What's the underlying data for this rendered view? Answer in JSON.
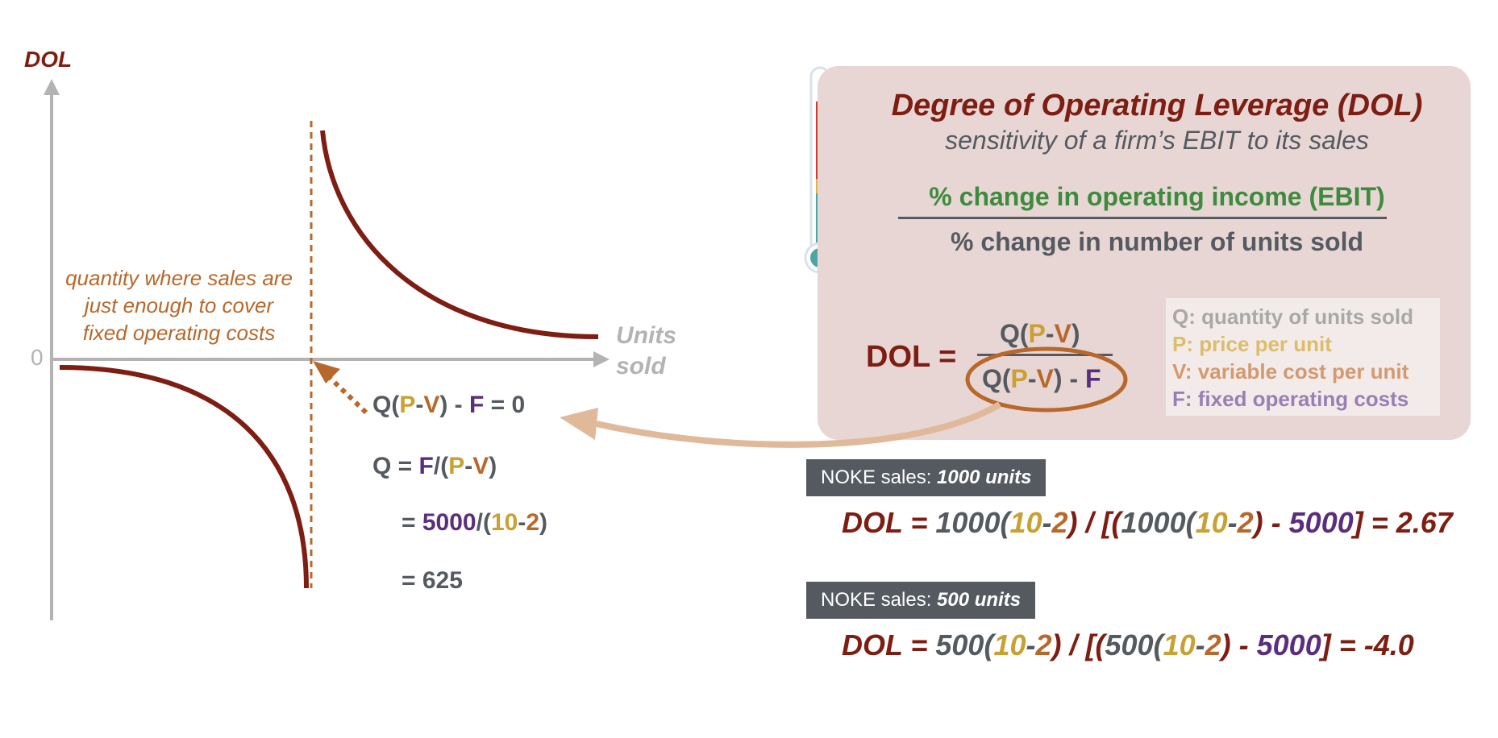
{
  "graph": {
    "y_label": "DOL",
    "zero_label": "0",
    "x_label_line1": "Units",
    "x_label_line2": "sold",
    "bep_note": [
      "quantity where sales are",
      "just enough to cover",
      "fixed operating costs"
    ]
  },
  "breakeven": {
    "eq1": [
      "Q(",
      "P",
      "-",
      "V",
      ") - ",
      "F",
      " = 0"
    ],
    "eq2": [
      "Q = ",
      "F",
      "/(",
      "P",
      "-",
      "V",
      ")"
    ],
    "eq3": [
      "= ",
      "5000",
      "/(",
      "10",
      "-",
      "2",
      ")"
    ],
    "eq4": "= 625"
  },
  "panel": {
    "title": "Degree of Operating Leverage (DOL)",
    "subtitle": "sensitivity of a firm’s EBIT to its sales",
    "numerator": "% change in operating income (EBIT)",
    "denominator": "% change in number of units sold",
    "dol_lhs": "DOL =",
    "dol_num": [
      "Q(",
      "P",
      "-",
      "V",
      ")"
    ],
    "dol_den": [
      "Q(",
      "P",
      "-",
      "V",
      ") - ",
      "F"
    ],
    "legend": [
      "Q: quantity of units sold",
      "P: price per unit",
      "V: variable cost per unit",
      "F: fixed operating costs"
    ]
  },
  "examples": [
    {
      "tag_prefix": "NOKE sales: ",
      "tag_value": "1000 units",
      "calc": [
        "DOL = ",
        "1000(",
        "10",
        "-",
        "2",
        ") / [(",
        "1000(",
        "10",
        "-",
        "2",
        ") - ",
        "5000",
        "] = 2.67"
      ]
    },
    {
      "tag_prefix": "NOKE sales: ",
      "tag_value": "500 units",
      "calc": [
        "DOL = ",
        "500(",
        "10",
        "-",
        "2",
        ") / [(",
        "500(",
        "10",
        "-",
        "2",
        ") - ",
        "5000",
        "] = -4.0"
      ]
    }
  ],
  "colors": {
    "dark_red": "#7e1d12",
    "orange": "#b8682a",
    "gold": "#c9a032",
    "purple": "#5a2e7c",
    "green": "#3d8c3d",
    "gray": "#555a60",
    "axis": "#b3b3b3",
    "panel_bg": "#e8d6d5"
  }
}
